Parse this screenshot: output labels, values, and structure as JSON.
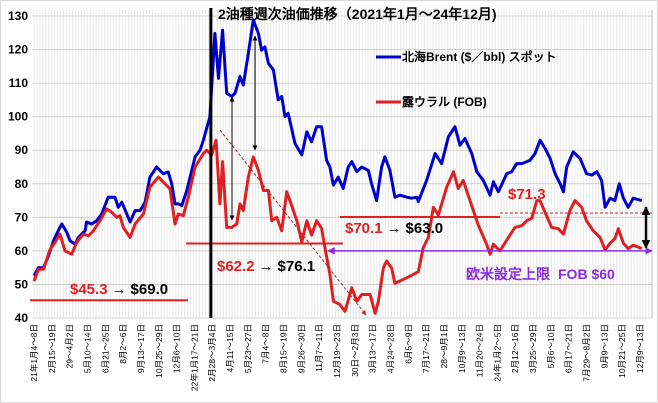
{
  "chart_data": {
    "type": "line",
    "title": "2油種週次油価推移（2021年1月～24年12月)",
    "xlabel": "",
    "ylabel": "",
    "ylim": [
      40,
      130
    ],
    "yticks": [
      40,
      50,
      60,
      70,
      80,
      90,
      100,
      110,
      120,
      130
    ],
    "x_unit": "weeks since 2021-01-04",
    "xlim": [
      0,
      206
    ],
    "grid": true,
    "legend_position": "top-right",
    "x_tick_labels": [
      "21年1月4～8日",
      "2月15～19日",
      "29～4月2日",
      "5月10～14日",
      "6月21～25日",
      "8月2～6日",
      "9月13～17日",
      "10月25～29日",
      "12月6～10日",
      "22年1月17～21日",
      "2月28～3月4日",
      "4月11～15日",
      "5月23～27日",
      "7月4～8日",
      "8月15～19日",
      "9月26～30日",
      "11月7～11日",
      "12月19～23日",
      "30日～2月3日",
      "3月13～17日",
      "4月24～28日",
      "6月5～9日",
      "7月17～21日",
      "28～9月1日",
      "10月9～13日",
      "11月20～24日",
      "24年1月2～5日",
      "2月12～16日",
      "3月25～29日",
      "5月6～10日",
      "6月17～21日",
      "7月29～8月2日",
      "9月9～13日",
      "10月21～25日",
      "12月9～13日"
    ],
    "series": [
      {
        "name": "北海Brent ($／bbl) スポット",
        "color": "#0000cc",
        "x": [
          0,
          1.5,
          3.2,
          4.9,
          6.6,
          8.2,
          9.4,
          11.1,
          12.2,
          13.9,
          15,
          17.3,
          17.8,
          19.5,
          21.2,
          22.9,
          25.1,
          27.4,
          28.5,
          29.7,
          31.4,
          32.5,
          34.2,
          35.9,
          37.6,
          39.2,
          41.5,
          43.7,
          45.4,
          46.6,
          47.7,
          48.8,
          50,
          51.7,
          54.5,
          56.2,
          57.3,
          59.5,
          61.2,
          62.4,
          63.8,
          65.2,
          66.9,
          68,
          69.7,
          70.8,
          72.5,
          74.2,
          75.9,
          77,
          78.1,
          79.3,
          81,
          82.6,
          83.8,
          84.9,
          86,
          88.3,
          90.6,
          92.3,
          93.9,
          95.6,
          97.3,
          99,
          100.1,
          101.3,
          102.9,
          104.6,
          106.3,
          107.5,
          109.2,
          110.9,
          113.1,
          114.2,
          115.9,
          117.6,
          118.7,
          120.4,
          122.1,
          123.8,
          126.1,
          127.8,
          129.5,
          130,
          132.8,
          135.7,
          137.9,
          140.2,
          142.4,
          144.1,
          145.8,
          148.1,
          149.8,
          152,
          154.3,
          155.4,
          157.1,
          159.9,
          161.6,
          163.3,
          165,
          166.7,
          167.8,
          169.5,
          171.2,
          172.9,
          174.6,
          176.3,
          178,
          179.1,
          180.2,
          182.4,
          184.7,
          186.9,
          188.7,
          190.4,
          192,
          193.2,
          194.9,
          196.5,
          198,
          199.4,
          201,
          202.7,
          205.6
        ],
        "values": [
          52.6,
          55,
          55,
          58.5,
          63,
          66,
          68,
          65.5,
          63,
          62,
          64,
          66,
          68.6,
          68,
          69,
          71,
          76,
          76,
          73,
          74.5,
          71,
          68.6,
          72,
          72,
          74.5,
          82,
          85,
          83,
          83.5,
          80,
          74,
          74,
          73.5,
          78,
          88,
          90,
          93,
          100,
          124.8,
          111.4,
          125.8,
          107,
          106,
          107,
          112,
          109.4,
          118.8,
          128.8,
          124.8,
          119.8,
          120.8,
          115.9,
          113.9,
          105,
          106,
          100,
          101,
          92,
          88.6,
          95.5,
          92.5,
          97,
          97,
          87,
          85,
          79.6,
          82,
          78.6,
          85,
          86.6,
          83.6,
          85,
          84,
          80,
          75,
          85,
          88,
          84,
          76,
          76.6,
          76,
          75.7,
          76,
          74.7,
          81,
          89,
          86,
          94,
          97,
          91.5,
          93.5,
          89,
          83.6,
          81,
          76.6,
          80.6,
          77.6,
          83,
          83.6,
          86,
          86,
          86.6,
          87,
          89,
          93,
          90.5,
          87.6,
          83,
          80,
          77.6,
          85,
          89.5,
          87.6,
          83,
          82.6,
          83.6,
          81,
          73,
          75.7,
          75,
          80,
          75.7,
          73,
          75.7,
          75
        ]
      },
      {
        "name": "露ウラル (FOB)",
        "color": "#e02020",
        "x": [
          0,
          1.5,
          3.2,
          5.4,
          7.1,
          8.8,
          10.5,
          12.8,
          14.4,
          16.7,
          18.4,
          20.1,
          22.3,
          24.6,
          26.3,
          28,
          29.1,
          30.2,
          32.5,
          34.2,
          37,
          39.2,
          42.1,
          44.3,
          46,
          47.7,
          48.8,
          50.5,
          52.2,
          54.5,
          57.3,
          58.4,
          60.1,
          61.6,
          62.9,
          63.8,
          65.2,
          66.9,
          68.6,
          69.7,
          70.8,
          72.5,
          74.2,
          75.9,
          77.6,
          79.3,
          80.4,
          82.1,
          83.8,
          85.5,
          86.6,
          88.9,
          90.6,
          92.3,
          93.9,
          95.6,
          97.3,
          98.4,
          100.1,
          101.3,
          103.5,
          105.2,
          107.5,
          109.2,
          110.9,
          113.7,
          115.4,
          116.5,
          118.2,
          119.3,
          121,
          122.1,
          124.4,
          126.1,
          128.3,
          130,
          131.7,
          133.4,
          135.1,
          136.8,
          139.6,
          141.9,
          143.5,
          145.2,
          147.5,
          150.3,
          153.1,
          154.3,
          155.4,
          157.6,
          160.5,
          162.7,
          165,
          166.7,
          168.4,
          170.1,
          171.2,
          172.3,
          175.1,
          177.4,
          179.1,
          181.3,
          183,
          185.3,
          186.9,
          189.2,
          191.5,
          193.2,
          194.9,
          196.5,
          197.7,
          199.4,
          201,
          202.7,
          205.6
        ],
        "values": [
          51,
          54.5,
          54.5,
          60.4,
          62.5,
          65,
          60,
          59,
          62.5,
          65,
          64.5,
          66,
          69,
          72.5,
          71.5,
          70,
          70.5,
          67,
          64,
          68,
          71,
          79,
          82,
          80,
          78.5,
          68,
          71,
          70.5,
          76,
          85,
          89,
          90,
          88.6,
          93,
          74,
          86.6,
          67,
          67,
          68,
          74,
          72,
          82,
          88,
          84,
          78,
          78,
          69,
          70,
          66,
          77.6,
          75,
          69,
          62.7,
          69,
          64.7,
          69,
          66.7,
          61,
          53,
          45,
          44,
          42,
          49,
          45,
          47,
          47,
          41.4,
          45,
          55,
          57,
          54.8,
          50.3,
          51.3,
          52,
          53,
          53.8,
          61,
          64,
          73,
          70.7,
          79,
          83.6,
          78.6,
          81,
          75,
          67.7,
          62,
          59,
          62,
          60,
          64,
          67,
          67.5,
          69,
          69.7,
          75,
          75,
          72.7,
          67,
          66.6,
          65,
          72,
          75,
          73,
          69,
          66,
          64,
          60.3,
          62.3,
          63.7,
          66.6,
          62.3,
          60.7,
          61.7,
          60.7
        ]
      }
    ],
    "annotations": {
      "period1": {
        "from": "$45.3",
        "arrow": "→",
        "to": "$69.0",
        "level": 45.3
      },
      "period2": {
        "from": "$62.2",
        "arrow": "→",
        "to": "$76.1",
        "level": 62.2
      },
      "period3": {
        "from": "$70.1",
        "arrow": "→",
        "to": "$63.0",
        "level": 70.1
      },
      "level4": {
        "label": "$71.3",
        "level": 71.3
      },
      "price_cap": {
        "label_jp": "欧米設定上限",
        "label_fob": "FOB $60",
        "level": 60,
        "color": "#8a2be2"
      },
      "invasion_week": 59.5
    }
  }
}
